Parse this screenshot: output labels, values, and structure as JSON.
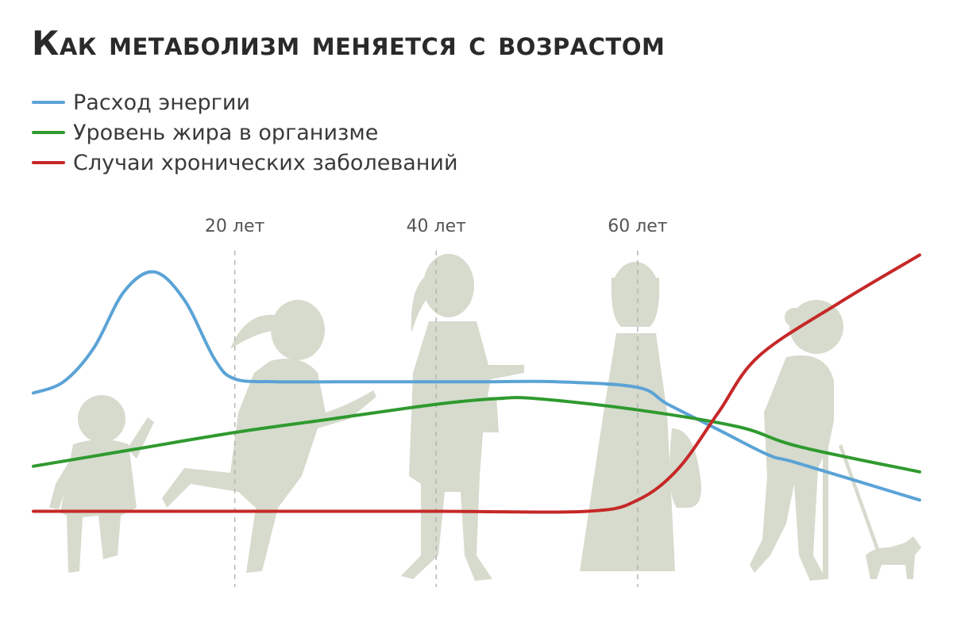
{
  "chart_data": {
    "type": "line",
    "title": "Как метаболизм меняется с возрастом",
    "x_ticks": [
      {
        "x": 20,
        "label": "20 лет"
      },
      {
        "x": 40,
        "label": "40 лет"
      },
      {
        "x": 60,
        "label": "60 лет"
      }
    ],
    "xlim": [
      0,
      88
    ],
    "ylim": [
      0,
      100
    ],
    "grid": false,
    "legend_position": "top-left",
    "series": [
      {
        "name": "Расход энергии",
        "color": "#5ba3d6",
        "points": [
          [
            0,
            52
          ],
          [
            3,
            56
          ],
          [
            6,
            68
          ],
          [
            9,
            88
          ],
          [
            12,
            95
          ],
          [
            15,
            85
          ],
          [
            18,
            64
          ],
          [
            20,
            57
          ],
          [
            24,
            56
          ],
          [
            30,
            56
          ],
          [
            36,
            56
          ],
          [
            40,
            56
          ],
          [
            45,
            56
          ],
          [
            52,
            56
          ],
          [
            60,
            54
          ],
          [
            63,
            48
          ],
          [
            68,
            39
          ],
          [
            73,
            30
          ],
          [
            76,
            27
          ],
          [
            88,
            14
          ]
        ]
      },
      {
        "name": "Уровень жира в организме",
        "color": "#2f9a2f",
        "points": [
          [
            0,
            26
          ],
          [
            10,
            32
          ],
          [
            20,
            38
          ],
          [
            30,
            43
          ],
          [
            40,
            48
          ],
          [
            46,
            50
          ],
          [
            50,
            50
          ],
          [
            60,
            46
          ],
          [
            70,
            40
          ],
          [
            76,
            33
          ],
          [
            88,
            24
          ]
        ]
      },
      {
        "name": "Случаи хронических заболеваний",
        "color": "#c62828",
        "points": [
          [
            0,
            10
          ],
          [
            20,
            10
          ],
          [
            40,
            10
          ],
          [
            55,
            10
          ],
          [
            60,
            14
          ],
          [
            64,
            25
          ],
          [
            68,
            45
          ],
          [
            72,
            65
          ],
          [
            80,
            84
          ],
          [
            88,
            101
          ]
        ]
      }
    ]
  }
}
